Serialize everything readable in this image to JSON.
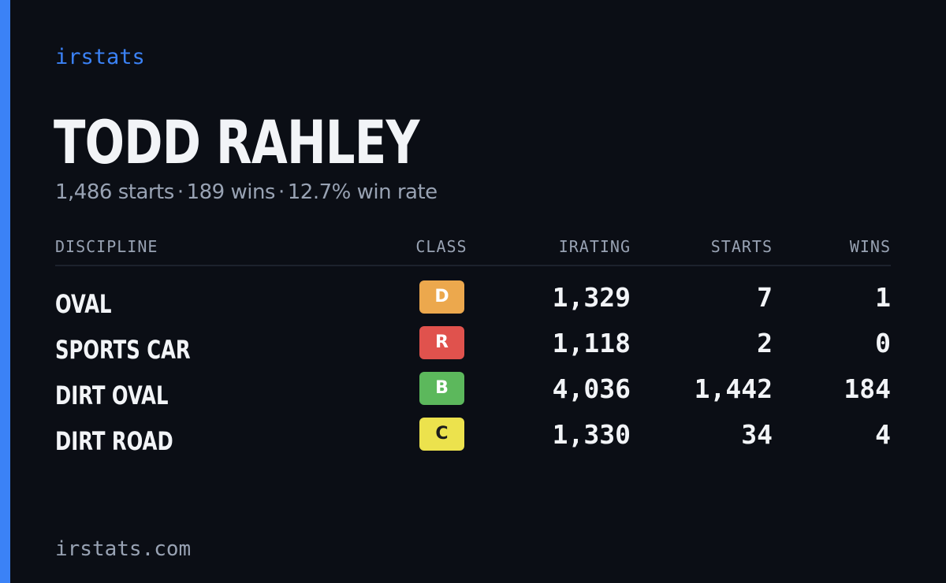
{
  "brand": "irstats",
  "driver": {
    "name": "TODD RAHLEY",
    "summary": {
      "starts": "1,486 starts",
      "wins": "189 wins",
      "win_rate": "12.7% win rate",
      "separator": "·"
    }
  },
  "table": {
    "headers": {
      "discipline": "DISCIPLINE",
      "class": "CLASS",
      "irating": "IRATING",
      "starts": "STARTS",
      "wins": "WINS"
    },
    "rows": [
      {
        "discipline": "OVAL",
        "class": "D",
        "class_bg": "#eca84d",
        "class_fg": "#ffffff",
        "irating": "1,329",
        "starts": "7",
        "wins": "1"
      },
      {
        "discipline": "SPORTS CAR",
        "class": "R",
        "class_bg": "#e0524d",
        "class_fg": "#ffffff",
        "irating": "1,118",
        "starts": "2",
        "wins": "0"
      },
      {
        "discipline": "DIRT OVAL",
        "class": "B",
        "class_bg": "#5cb85c",
        "class_fg": "#ffffff",
        "irating": "4,036",
        "starts": "1,442",
        "wins": "184"
      },
      {
        "discipline": "DIRT ROAD",
        "class": "C",
        "class_bg": "#ece24d",
        "class_fg": "#1c1c1c",
        "irating": "1,330",
        "starts": "34",
        "wins": "4"
      }
    ]
  },
  "footer": {
    "url": "irstats.com"
  },
  "colors": {
    "background": "#0b0e15",
    "accent": "#3b82f6",
    "text_primary": "#f2f4f7",
    "text_muted": "#98a2b3"
  }
}
